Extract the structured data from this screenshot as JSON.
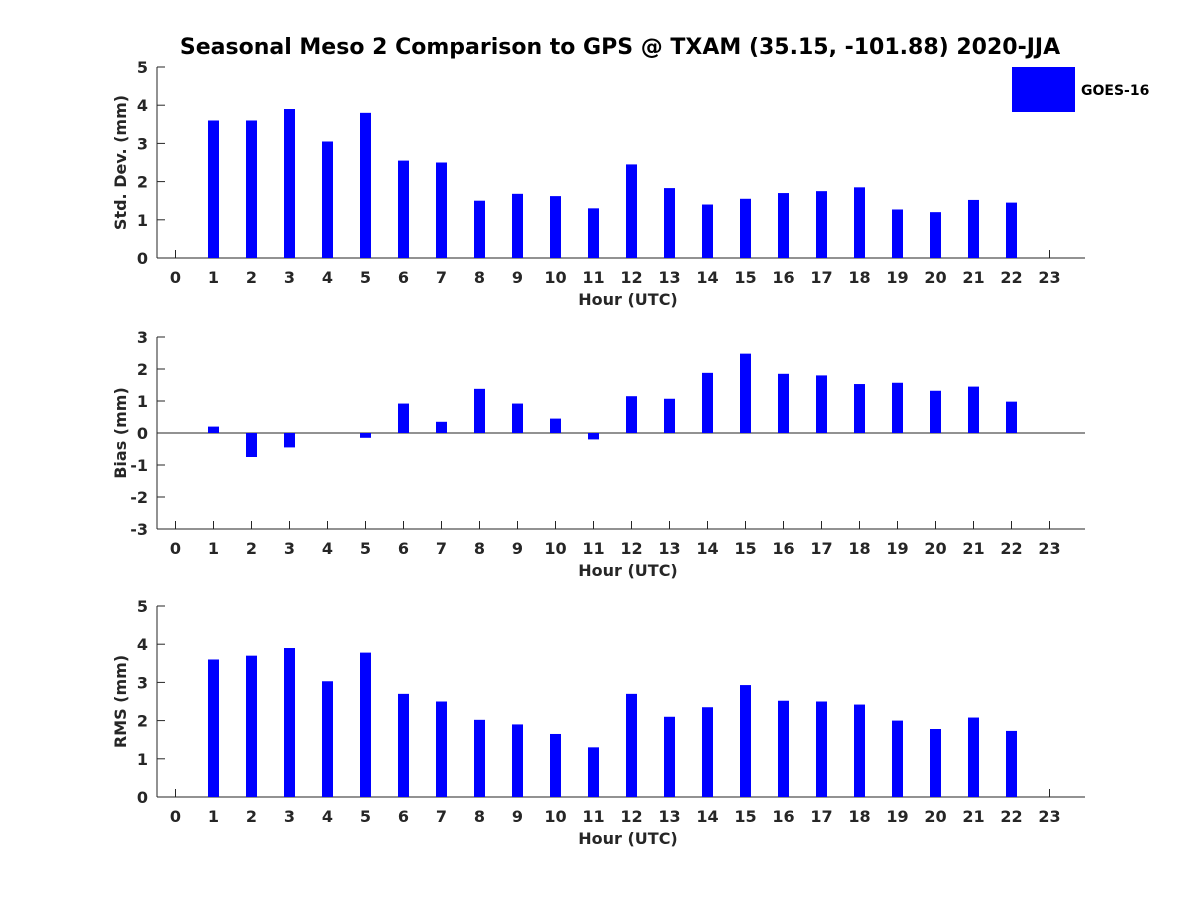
{
  "title": "Seasonal Meso 2 Comparison to GPS @ TXAM (35.15, -101.88) 2020-JJA",
  "legend": {
    "label": "GOES-16",
    "color": "#0000ff",
    "placement": "top-right"
  },
  "chart_data": [
    {
      "type": "bar",
      "title": "",
      "xlabel": "Hour (UTC)",
      "ylabel": "Std. Dev. (mm)",
      "ylim": [
        0,
        5
      ],
      "yticks": [
        0,
        1,
        2,
        3,
        4,
        5
      ],
      "categories": [
        0,
        1,
        2,
        3,
        4,
        5,
        6,
        7,
        8,
        9,
        10,
        11,
        12,
        13,
        14,
        15,
        16,
        17,
        18,
        19,
        20,
        21,
        22,
        23
      ],
      "series": [
        {
          "name": "GOES-16",
          "values": [
            null,
            3.6,
            3.6,
            3.9,
            3.05,
            3.8,
            2.55,
            2.5,
            1.5,
            1.68,
            1.62,
            1.3,
            2.45,
            1.83,
            1.4,
            1.55,
            1.7,
            1.75,
            1.85,
            1.27,
            1.2,
            1.52,
            1.45,
            null
          ]
        }
      ]
    },
    {
      "type": "bar",
      "title": "",
      "xlabel": "Hour (UTC)",
      "ylabel": "Bias (mm)",
      "ylim": [
        -3,
        3
      ],
      "yticks": [
        -3,
        -2,
        -1,
        0,
        1,
        2,
        3
      ],
      "categories": [
        0,
        1,
        2,
        3,
        4,
        5,
        6,
        7,
        8,
        9,
        10,
        11,
        12,
        13,
        14,
        15,
        16,
        17,
        18,
        19,
        20,
        21,
        22,
        23
      ],
      "series": [
        {
          "name": "GOES-16",
          "values": [
            null,
            0.2,
            -0.75,
            -0.45,
            0,
            -0.15,
            0.92,
            0.35,
            1.38,
            0.92,
            0.45,
            -0.2,
            1.15,
            1.07,
            1.88,
            2.48,
            1.85,
            1.8,
            1.53,
            1.57,
            1.32,
            1.45,
            0.98,
            null
          ]
        }
      ]
    },
    {
      "type": "bar",
      "title": "",
      "xlabel": "Hour (UTC)",
      "ylabel": "RMS (mm)",
      "ylim": [
        0,
        5
      ],
      "yticks": [
        0,
        1,
        2,
        3,
        4,
        5
      ],
      "categories": [
        0,
        1,
        2,
        3,
        4,
        5,
        6,
        7,
        8,
        9,
        10,
        11,
        12,
        13,
        14,
        15,
        16,
        17,
        18,
        19,
        20,
        21,
        22,
        23
      ],
      "series": [
        {
          "name": "GOES-16",
          "values": [
            null,
            3.6,
            3.7,
            3.9,
            3.03,
            3.78,
            2.7,
            2.5,
            2.02,
            1.9,
            1.65,
            1.3,
            2.7,
            2.1,
            2.35,
            2.93,
            2.52,
            2.5,
            2.42,
            2.0,
            1.78,
            2.08,
            1.73,
            null
          ]
        }
      ]
    }
  ]
}
